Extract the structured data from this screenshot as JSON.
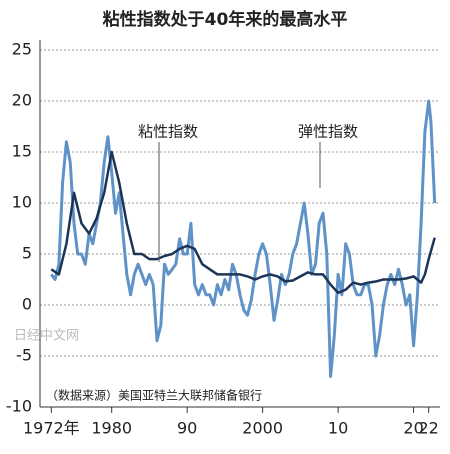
{
  "chart_data": {
    "type": "line",
    "title": "粘性指数处于40年来的最高水平",
    "annotations": [
      "粘性指数",
      "弹性指数"
    ],
    "source": "（数据来源）美国亚特兰大联邦储备银行",
    "watermark": "日经中文网",
    "xlim": [
      1970.5,
      2023.5
    ],
    "xticks": [
      {
        "value": 1972,
        "label": "1972年"
      },
      1980,
      {
        "value": 1990,
        "label": "90"
      },
      2000,
      {
        "value": 2010,
        "label": "10"
      },
      {
        "value": 2020,
        "label": "20"
      },
      {
        "value": 2022,
        "label": "22"
      }
    ],
    "ylim": [
      -10,
      25
    ],
    "yticks": [
      -10,
      -5,
      0,
      5,
      10,
      15,
      20,
      25
    ],
    "grid": true,
    "series": [
      {
        "name": "弹性指数",
        "color": "#5f93c8",
        "x": [
          1972,
          1972.5,
          1973,
          1973.5,
          1974,
          1974.5,
          1975,
          1975.5,
          1976,
          1976.5,
          1977,
          1977.5,
          1978,
          1978.5,
          1979,
          1979.5,
          1980,
          1980.5,
          1981,
          1981.5,
          1982,
          1982.5,
          1983,
          1983.5,
          1984,
          1984.5,
          1985,
          1985.5,
          1986,
          1986.5,
          1987,
          1987.5,
          1988,
          1988.5,
          1989,
          1989.5,
          1990,
          1990.5,
          1991,
          1991.5,
          1992,
          1992.5,
          1993,
          1993.5,
          1994,
          1994.5,
          1995,
          1995.5,
          1996,
          1996.5,
          1997,
          1997.5,
          1998,
          1998.5,
          1999,
          1999.5,
          2000,
          2000.5,
          2001,
          2001.5,
          2002,
          2002.5,
          2003,
          2003.5,
          2004,
          2004.5,
          2005,
          2005.5,
          2006,
          2006.5,
          2007,
          2007.5,
          2008,
          2008.5,
          2009,
          2009.5,
          2010,
          2010.5,
          2011,
          2011.5,
          2012,
          2012.5,
          2013,
          2013.5,
          2014,
          2014.5,
          2015,
          2015.5,
          2016,
          2016.5,
          2017,
          2017.5,
          2018,
          2018.5,
          2019,
          2019.5,
          2020,
          2020.5,
          2021,
          2021.5,
          2022,
          2022.3,
          2022.8
        ],
        "values": [
          3,
          2.5,
          4,
          12,
          16,
          14,
          8,
          5,
          5,
          4,
          7,
          6,
          8,
          10,
          14,
          16.5,
          13,
          9,
          11,
          7,
          3,
          1,
          3,
          4,
          3,
          2,
          3,
          2,
          -3.5,
          -2,
          4,
          3,
          3.5,
          4,
          6.5,
          5,
          5,
          8,
          2,
          1,
          2,
          1,
          1,
          0,
          2,
          1,
          2.5,
          1.5,
          4,
          3,
          1,
          -0.5,
          -1,
          0.5,
          3,
          5,
          6,
          5,
          2,
          -1.5,
          0.5,
          3,
          2,
          3,
          5,
          6,
          8,
          10,
          7,
          3,
          4,
          8,
          9,
          5,
          -7,
          -3,
          3,
          1,
          6,
          5,
          2,
          1,
          1,
          2,
          2,
          0,
          -5,
          -3,
          0,
          2,
          3,
          2,
          3.5,
          2,
          0,
          1,
          -4,
          1,
          8,
          17,
          20,
          18,
          10
        ]
      },
      {
        "name": "粘性指数",
        "color": "#1c3557",
        "x": [
          1972,
          1973,
          1974,
          1975,
          1976,
          1977,
          1978,
          1979,
          1980,
          1981,
          1982,
          1983,
          1984,
          1985,
          1986,
          1987,
          1988,
          1989,
          1990,
          1991,
          1992,
          1993,
          1994,
          1995,
          1996,
          1997,
          1998,
          1999,
          2000,
          2001,
          2002,
          2003,
          2004,
          2005,
          2006,
          2007,
          2008,
          2009,
          2010,
          2011,
          2012,
          2013,
          2014,
          2015,
          2016,
          2017,
          2018,
          2019,
          2020,
          2021,
          2021.5,
          2022,
          2022.8
        ],
        "values": [
          3.5,
          3,
          6,
          11,
          8,
          7,
          8.5,
          11,
          15,
          12,
          8,
          5,
          5,
          4.5,
          4.5,
          4.8,
          5,
          5.5,
          5.8,
          5.5,
          4,
          3.5,
          3,
          3,
          3,
          3,
          2.8,
          2.5,
          2.8,
          3,
          2.8,
          2.3,
          2.4,
          2.8,
          3.2,
          3,
          3,
          2,
          1.2,
          1.5,
          2.2,
          2,
          2.2,
          2.3,
          2.5,
          2.5,
          2.5,
          2.6,
          2.8,
          2.2,
          3,
          4.5,
          6.6
        ]
      }
    ]
  }
}
